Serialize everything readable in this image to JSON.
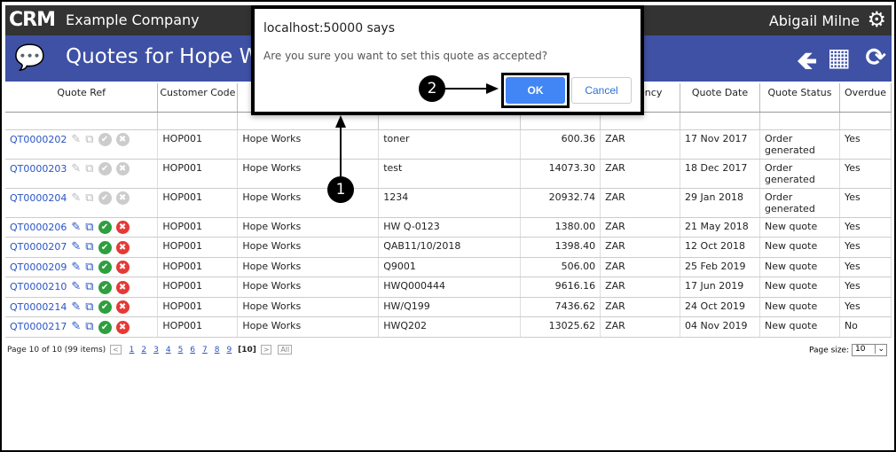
{
  "app": {
    "logo": "CRM",
    "company": "Example Company",
    "user": "Abigail Milne",
    "page_title": "Quotes for Hope Works"
  },
  "colors": {
    "header": "#333333",
    "titlebar": "#3f51a5",
    "link": "#2a54c6",
    "accept": "#2e9e3e",
    "reject": "#e53935",
    "ok": "#4285f4"
  },
  "table": {
    "headers": [
      "Quote Ref",
      "Customer Code",
      "",
      "",
      "",
      "Currency",
      "Quote Date",
      "Quote Status",
      "Overdue"
    ],
    "rows": [
      {
        "ref": "QT0000202",
        "code": "HOP001",
        "customer": "Hope Works",
        "desc": "toner",
        "amount": "600.36",
        "currency": "ZAR",
        "date": "17 Nov 2017",
        "status": "Order generated",
        "overdue": "Yes",
        "enabled": false
      },
      {
        "ref": "QT0000203",
        "code": "HOP001",
        "customer": "Hope Works",
        "desc": "test",
        "amount": "14073.30",
        "currency": "ZAR",
        "date": "18 Dec 2017",
        "status": "Order generated",
        "overdue": "Yes",
        "enabled": false
      },
      {
        "ref": "QT0000204",
        "code": "HOP001",
        "customer": "Hope Works",
        "desc": "1234",
        "amount": "20932.74",
        "currency": "ZAR",
        "date": "29 Jan 2018",
        "status": "Order generated",
        "overdue": "Yes",
        "enabled": false
      },
      {
        "ref": "QT0000206",
        "code": "HOP001",
        "customer": "Hope Works",
        "desc": "HW Q-0123",
        "amount": "1380.00",
        "currency": "ZAR",
        "date": "21 May 2018",
        "status": "New quote",
        "overdue": "Yes",
        "enabled": true
      },
      {
        "ref": "QT0000207",
        "code": "HOP001",
        "customer": "Hope Works",
        "desc": "QAB11/10/2018",
        "amount": "1398.40",
        "currency": "ZAR",
        "date": "12 Oct 2018",
        "status": "New quote",
        "overdue": "Yes",
        "enabled": true
      },
      {
        "ref": "QT0000209",
        "code": "HOP001",
        "customer": "Hope Works",
        "desc": "Q9001",
        "amount": "506.00",
        "currency": "ZAR",
        "date": "25 Feb 2019",
        "status": "New quote",
        "overdue": "Yes",
        "enabled": true
      },
      {
        "ref": "QT0000210",
        "code": "HOP001",
        "customer": "Hope Works",
        "desc": "HWQ000444",
        "amount": "9616.16",
        "currency": "ZAR",
        "date": "17 Jun 2019",
        "status": "New quote",
        "overdue": "Yes",
        "enabled": true
      },
      {
        "ref": "QT0000214",
        "code": "HOP001",
        "customer": "Hope Works",
        "desc": "HW/Q199",
        "amount": "7436.62",
        "currency": "ZAR",
        "date": "24 Oct 2019",
        "status": "New quote",
        "overdue": "Yes",
        "enabled": true
      },
      {
        "ref": "QT0000217",
        "code": "HOP001",
        "customer": "Hope Works",
        "desc": "HWQ202",
        "amount": "13025.62",
        "currency": "ZAR",
        "date": "04 Nov 2019",
        "status": "New quote",
        "overdue": "No",
        "enabled": true
      }
    ]
  },
  "pager": {
    "summary": "Page 10 of 10 (99 items)",
    "pages": [
      "1",
      "2",
      "3",
      "4",
      "5",
      "6",
      "7",
      "8",
      "9"
    ],
    "current": "[10]",
    "all": "All",
    "page_size_label": "Page size:",
    "page_size": "10"
  },
  "dialog": {
    "title": "localhost:50000 says",
    "message": "Are you sure you want to set this quote as accepted?",
    "ok": "OK",
    "cancel": "Cancel"
  },
  "callouts": [
    "1",
    "2"
  ]
}
